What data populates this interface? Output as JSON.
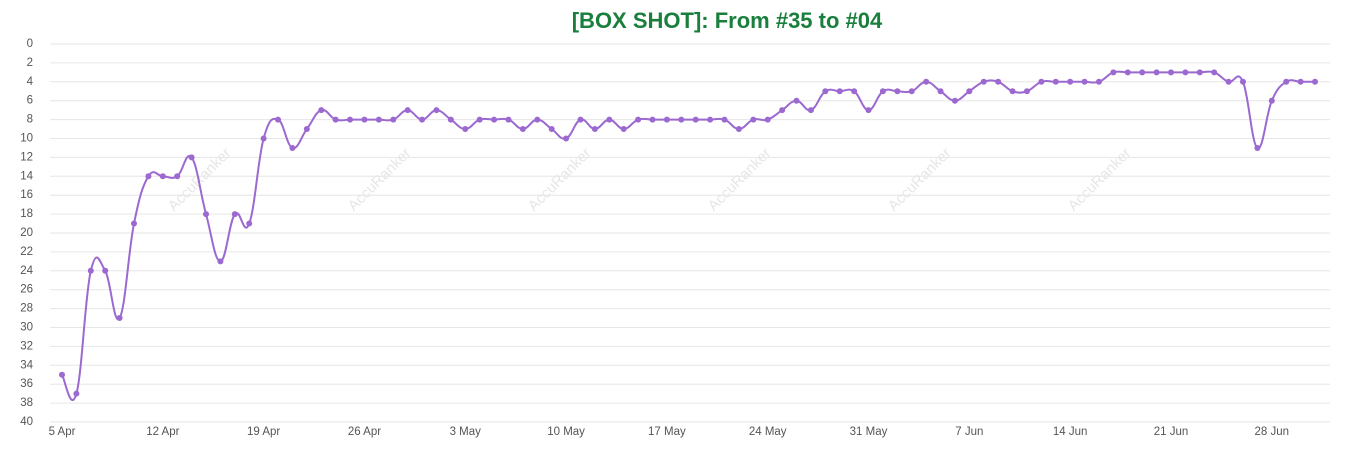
{
  "chart_data": {
    "type": "line",
    "title": "[BOX SHOT]: From #35 to #04",
    "watermark": "AccuRanker",
    "categories": [
      "5 Apr",
      null,
      null,
      null,
      null,
      null,
      null,
      "12 Apr",
      null,
      null,
      null,
      null,
      null,
      null,
      "19 Apr",
      null,
      null,
      null,
      null,
      null,
      null,
      "26 Apr",
      null,
      null,
      null,
      null,
      null,
      null,
      "3 May",
      null,
      null,
      null,
      null,
      null,
      null,
      "10 May",
      null,
      null,
      null,
      null,
      null,
      null,
      "17 May",
      null,
      null,
      null,
      null,
      null,
      null,
      "24 May",
      null,
      null,
      null,
      null,
      null,
      null,
      "31 May",
      null,
      null,
      null,
      null,
      null,
      null,
      "7 Jun",
      null,
      null,
      null,
      null,
      null,
      null,
      "14 Jun",
      null,
      null,
      null,
      null,
      null,
      null,
      "21 Jun",
      null,
      null,
      null,
      null,
      null,
      null,
      "28 Jun",
      null,
      null,
      null
    ],
    "values": [
      35,
      37,
      24,
      24,
      29,
      19,
      14,
      14,
      14,
      12,
      18,
      23,
      18,
      19,
      10,
      8,
      11,
      9,
      7,
      8,
      8,
      8,
      8,
      8,
      7,
      8,
      7,
      8,
      9,
      8,
      8,
      8,
      9,
      8,
      9,
      10,
      8,
      9,
      8,
      9,
      8,
      8,
      8,
      8,
      8,
      8,
      8,
      9,
      8,
      8,
      7,
      6,
      7,
      5,
      5,
      5,
      7,
      5,
      5,
      5,
      4,
      5,
      6,
      5,
      4,
      4,
      5,
      5,
      4,
      4,
      4,
      4,
      4,
      3,
      3,
      3,
      3,
      3,
      3,
      3,
      3,
      4,
      4,
      11,
      6,
      4,
      4,
      4
    ],
    "color": "#9b69cf",
    "ylim": [
      40,
      0
    ],
    "yticks": [
      0,
      2,
      4,
      6,
      8,
      10,
      12,
      14,
      16,
      18,
      20,
      22,
      24,
      26,
      28,
      30,
      32,
      34,
      36,
      38,
      40
    ],
    "grid": true
  }
}
